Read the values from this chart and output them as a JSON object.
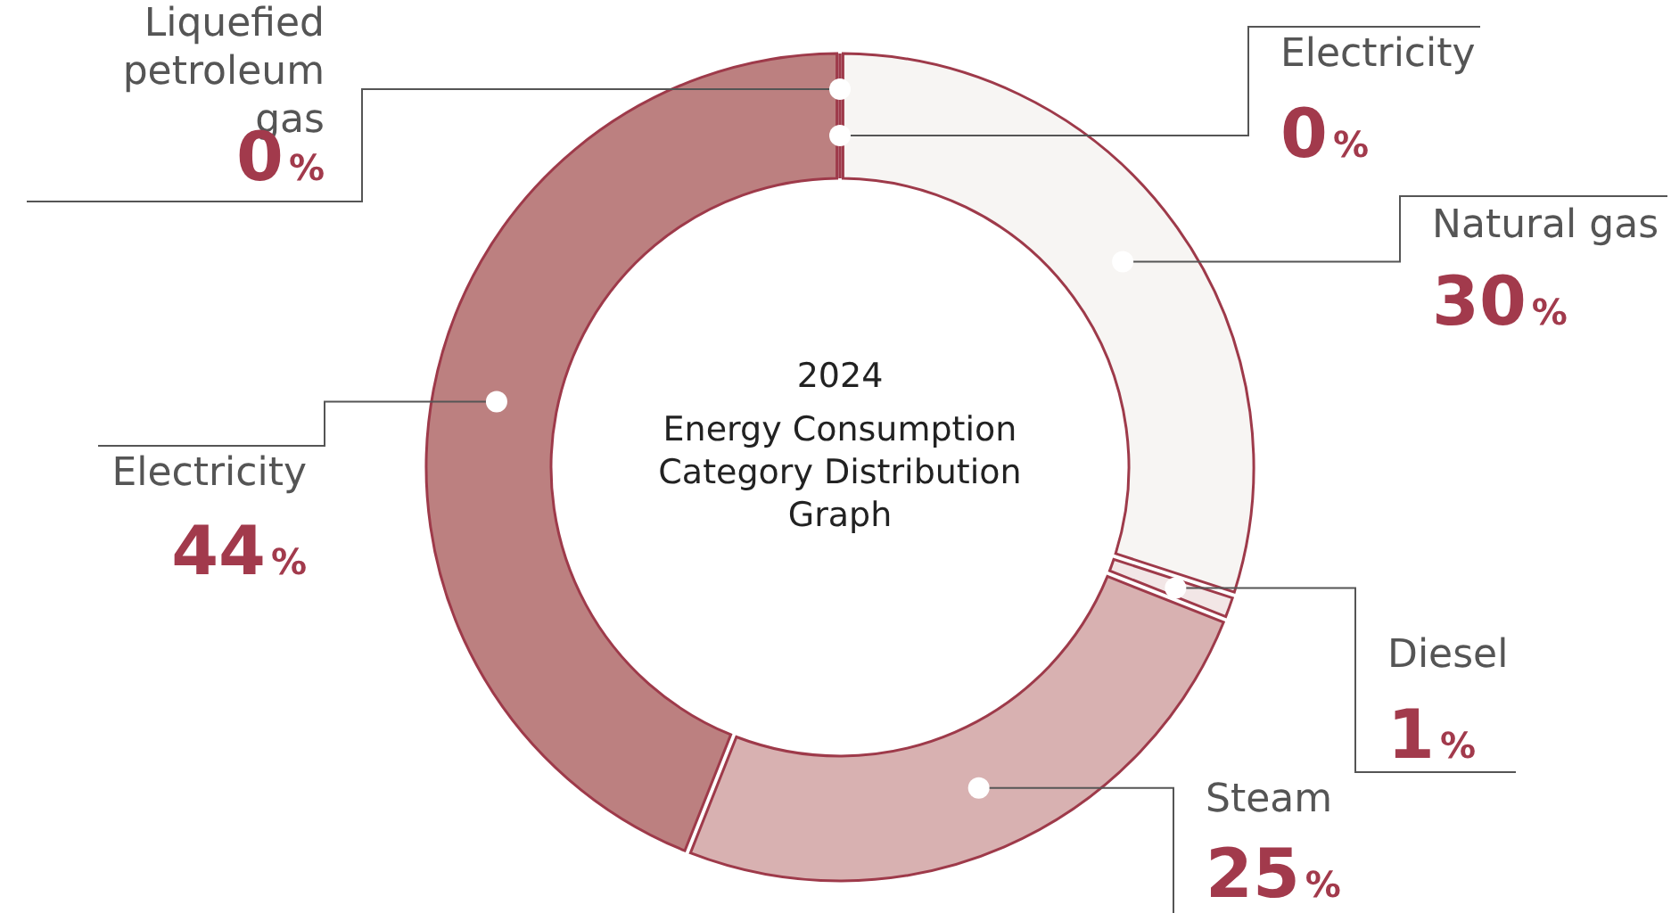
{
  "chart_data": {
    "type": "donut",
    "title": "2024",
    "subtitle": "Energy Consumption Category Distribution Graph",
    "categories": [
      "Electricity",
      "Natural gas",
      "Diesel",
      "Steam",
      "Electricity",
      "Liquefied petroleum gas"
    ],
    "values": [
      0,
      30,
      1,
      25,
      44,
      0
    ],
    "value_labels": [
      "0%",
      "30%",
      "1%",
      "25%",
      "44%",
      "0%"
    ],
    "colors": [
      "#f7f5f3",
      "#f7f5f3",
      "#f2e6e6",
      "#d8b1b1",
      "#bc8080",
      "#a04a58"
    ],
    "legend": false
  }
}
